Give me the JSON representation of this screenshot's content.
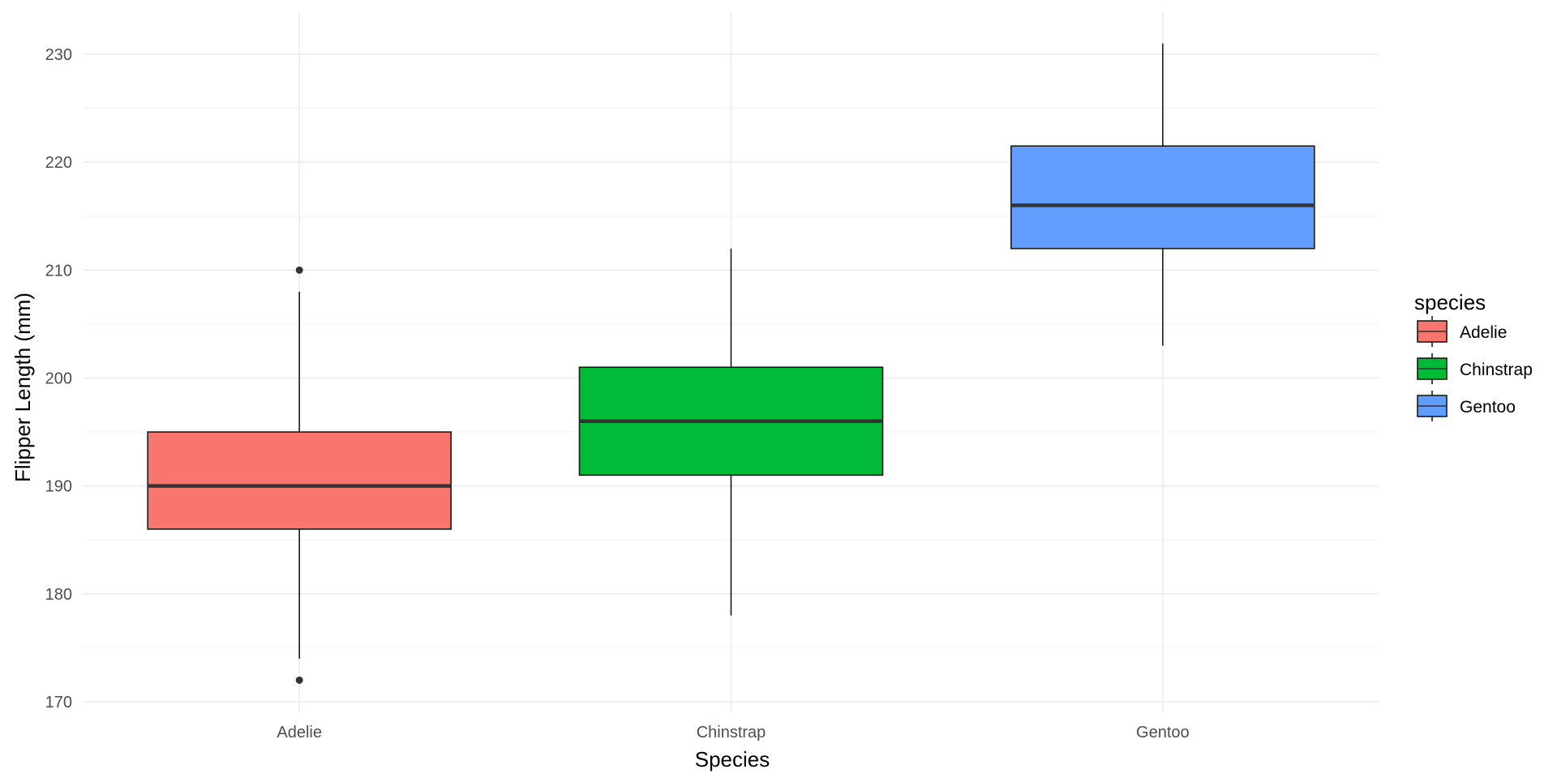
{
  "chart_data": {
    "type": "boxplot",
    "title": "",
    "xlabel": "Species",
    "ylabel": "Flipper Length (mm)",
    "ylim": [
      168,
      234
    ],
    "yticks": [
      170,
      180,
      190,
      200,
      210,
      220,
      230
    ],
    "y_minor_ticks": [
      175,
      185,
      195,
      205,
      215,
      225
    ],
    "grid": true,
    "legend": {
      "title": "species",
      "placement": "right"
    },
    "categories": [
      "Adelie",
      "Chinstrap",
      "Gentoo"
    ],
    "series": [
      {
        "name": "Adelie",
        "color": "#F8766D",
        "whisker_low": 174,
        "q1": 186,
        "median": 190,
        "q3": 195,
        "whisker_high": 208,
        "outliers": [
          210,
          172
        ]
      },
      {
        "name": "Chinstrap",
        "color": "#00BA38",
        "whisker_low": 178,
        "q1": 191,
        "median": 196,
        "q3": 201,
        "whisker_high": 212,
        "outliers": []
      },
      {
        "name": "Gentoo",
        "color": "#619CFF",
        "whisker_low": 203,
        "q1": 212,
        "median": 216,
        "q3": 221.5,
        "whisker_high": 231,
        "outliers": []
      }
    ]
  }
}
